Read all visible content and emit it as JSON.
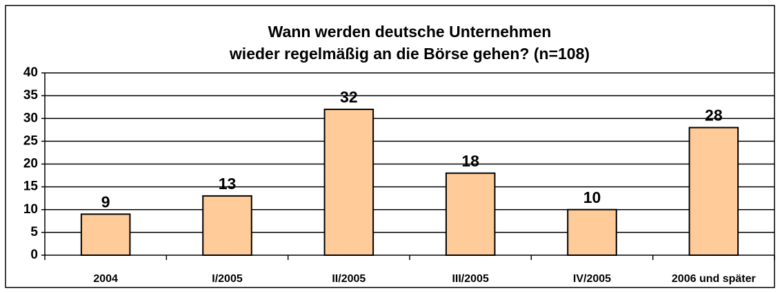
{
  "chart_data": {
    "type": "bar",
    "title": [
      "Wann werden deutsche Unternehmen",
      "wieder regelmäßig an die Börse gehen? (n=108)"
    ],
    "categories": [
      "2004",
      "I/2005",
      "II/2005",
      "III/2005",
      "IV/2005",
      "2006 und später"
    ],
    "values": [
      9,
      13,
      32,
      18,
      10,
      28
    ],
    "color": "#ffcc99",
    "ylim": [
      0,
      40
    ],
    "yticks": [
      0,
      5,
      10,
      15,
      20,
      25,
      30,
      35,
      40
    ],
    "grid": true
  }
}
